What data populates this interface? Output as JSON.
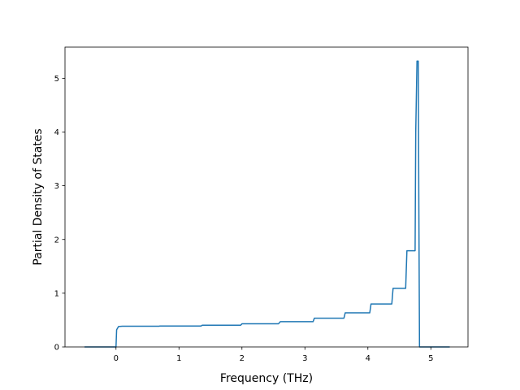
{
  "chart_data": {
    "type": "line",
    "xlabel": "Frequency (THz)",
    "ylabel": "Partial Density of States",
    "xlim": [
      -0.81,
      5.59
    ],
    "ylim": [
      0,
      5.58
    ],
    "x_ticks": [
      0,
      1,
      2,
      3,
      4,
      5
    ],
    "y_ticks": [
      0,
      1,
      2,
      3,
      4,
      5
    ],
    "grid": false,
    "legend": "none",
    "series": [
      {
        "color": "#1f77b4",
        "points": [
          [
            -0.5,
            0.0
          ],
          [
            0.0,
            0.0
          ],
          [
            0.01,
            0.32
          ],
          [
            0.04,
            0.38
          ],
          [
            0.1,
            0.385
          ],
          [
            0.68,
            0.385
          ],
          [
            0.7,
            0.39
          ],
          [
            1.35,
            0.39
          ],
          [
            1.37,
            0.405
          ],
          [
            1.98,
            0.405
          ],
          [
            2.0,
            0.43
          ],
          [
            2.58,
            0.43
          ],
          [
            2.61,
            0.47
          ],
          [
            3.13,
            0.47
          ],
          [
            3.15,
            0.535
          ],
          [
            3.62,
            0.535
          ],
          [
            3.64,
            0.635
          ],
          [
            4.03,
            0.635
          ],
          [
            4.05,
            0.8
          ],
          [
            4.38,
            0.8
          ],
          [
            4.4,
            1.09
          ],
          [
            4.6,
            1.09
          ],
          [
            4.62,
            1.79
          ],
          [
            4.75,
            1.79
          ],
          [
            4.76,
            4.0
          ],
          [
            4.78,
            5.32
          ],
          [
            4.8,
            5.32
          ],
          [
            4.81,
            2.5
          ],
          [
            4.82,
            0.0
          ],
          [
            5.3,
            0.0
          ]
        ]
      }
    ]
  }
}
